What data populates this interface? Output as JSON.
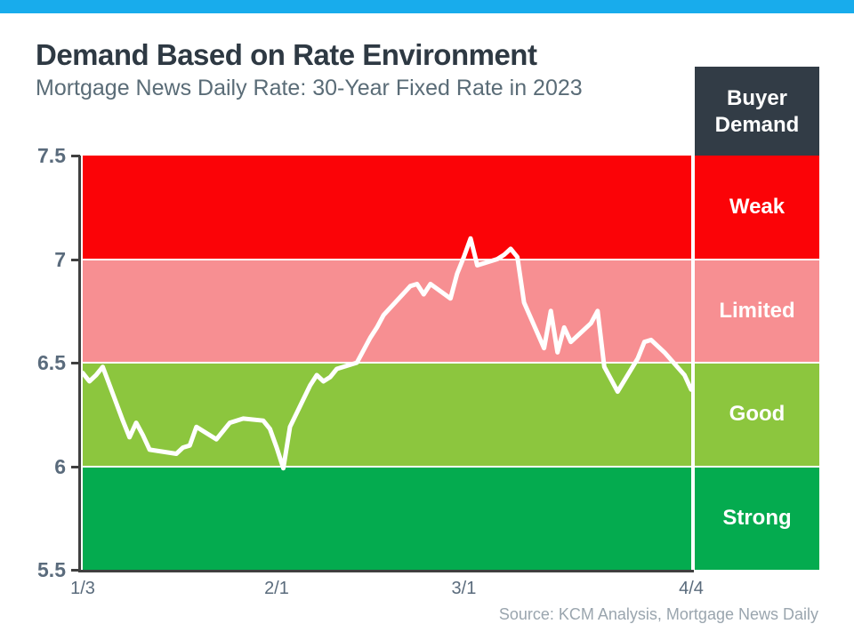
{
  "page": {
    "title": "Demand Based on Rate Environment",
    "subtitle": "Mortgage News Daily Rate: 30-Year Fixed Rate in 2023",
    "source": "Source: KCM Analysis, Mortgage News Daily",
    "accent_bar_color": "#18acec"
  },
  "legend": {
    "header": "Buyer Demand",
    "header_bg": "#323c46"
  },
  "chart_data": {
    "type": "line",
    "title": "Demand Based on Rate Environment",
    "subtitle": "Mortgage News Daily Rate: 30-Year Fixed Rate in 2023",
    "xlabel": "",
    "ylabel": "",
    "ylim": [
      5.5,
      7.5
    ],
    "yticks": [
      7.5,
      7.0,
      6.5,
      6.0,
      5.5
    ],
    "ytick_labels": [
      "7.5",
      "7",
      "6.5",
      "6",
      "5.5"
    ],
    "xtick_labels": [
      "1/3",
      "2/1",
      "3/1",
      "4/4"
    ],
    "x_start": "1/3",
    "x_end": "4/4",
    "grid": false,
    "line_color": "#ffffff",
    "legend_position": "right",
    "bands": [
      {
        "label": "Weak",
        "from": 7.0,
        "to": 7.5,
        "color": "#fb0307"
      },
      {
        "label": "Limited",
        "from": 6.5,
        "to": 7.0,
        "color": "#f78f92"
      },
      {
        "label": "Good",
        "from": 6.0,
        "to": 6.5,
        "color": "#8cc63e"
      },
      {
        "label": "Strong",
        "from": 5.5,
        "to": 6.0,
        "color": "#04ab4f"
      }
    ],
    "series": [
      {
        "name": "30-Year Fixed Rate",
        "points": [
          {
            "d": "1/3",
            "v": 6.45
          },
          {
            "d": "1/4",
            "v": 6.41
          },
          {
            "d": "1/5",
            "v": 6.44
          },
          {
            "d": "1/6",
            "v": 6.48
          },
          {
            "d": "1/9",
            "v": 6.22
          },
          {
            "d": "1/10",
            "v": 6.14
          },
          {
            "d": "1/11",
            "v": 6.21
          },
          {
            "d": "1/12",
            "v": 6.15
          },
          {
            "d": "1/13",
            "v": 6.08
          },
          {
            "d": "1/17",
            "v": 6.06
          },
          {
            "d": "1/18",
            "v": 6.09
          },
          {
            "d": "1/19",
            "v": 6.1
          },
          {
            "d": "1/20",
            "v": 6.19
          },
          {
            "d": "1/23",
            "v": 6.13
          },
          {
            "d": "1/24",
            "v": 6.17
          },
          {
            "d": "1/25",
            "v": 6.21
          },
          {
            "d": "1/26",
            "v": 6.22
          },
          {
            "d": "1/27",
            "v": 6.23
          },
          {
            "d": "1/30",
            "v": 6.22
          },
          {
            "d": "1/31",
            "v": 6.18
          },
          {
            "d": "2/1",
            "v": 6.09
          },
          {
            "d": "2/2",
            "v": 5.99
          },
          {
            "d": "2/3",
            "v": 6.19
          },
          {
            "d": "2/6",
            "v": 6.39
          },
          {
            "d": "2/7",
            "v": 6.44
          },
          {
            "d": "2/8",
            "v": 6.41
          },
          {
            "d": "2/9",
            "v": 6.43
          },
          {
            "d": "2/10",
            "v": 6.47
          },
          {
            "d": "2/13",
            "v": 6.5
          },
          {
            "d": "2/14",
            "v": 6.56
          },
          {
            "d": "2/15",
            "v": 6.62
          },
          {
            "d": "2/16",
            "v": 6.67
          },
          {
            "d": "2/17",
            "v": 6.73
          },
          {
            "d": "2/21",
            "v": 6.87
          },
          {
            "d": "2/22",
            "v": 6.88
          },
          {
            "d": "2/23",
            "v": 6.83
          },
          {
            "d": "2/24",
            "v": 6.88
          },
          {
            "d": "2/27",
            "v": 6.81
          },
          {
            "d": "2/28",
            "v": 6.93
          },
          {
            "d": "3/1",
            "v": 7.01
          },
          {
            "d": "3/2",
            "v": 7.1
          },
          {
            "d": "3/3",
            "v": 6.97
          },
          {
            "d": "3/6",
            "v": 7.0
          },
          {
            "d": "3/7",
            "v": 7.02
          },
          {
            "d": "3/8",
            "v": 7.05
          },
          {
            "d": "3/9",
            "v": 7.01
          },
          {
            "d": "3/10",
            "v": 6.79
          },
          {
            "d": "3/13",
            "v": 6.57
          },
          {
            "d": "3/14",
            "v": 6.75
          },
          {
            "d": "3/15",
            "v": 6.55
          },
          {
            "d": "3/16",
            "v": 6.67
          },
          {
            "d": "3/17",
            "v": 6.6
          },
          {
            "d": "3/20",
            "v": 6.69
          },
          {
            "d": "3/21",
            "v": 6.75
          },
          {
            "d": "3/22",
            "v": 6.48
          },
          {
            "d": "3/23",
            "v": 6.42
          },
          {
            "d": "3/24",
            "v": 6.36
          },
          {
            "d": "3/27",
            "v": 6.52
          },
          {
            "d": "3/28",
            "v": 6.6
          },
          {
            "d": "3/29",
            "v": 6.61
          },
          {
            "d": "3/30",
            "v": 6.58
          },
          {
            "d": "3/31",
            "v": 6.55
          },
          {
            "d": "4/3",
            "v": 6.44
          },
          {
            "d": "4/4",
            "v": 6.37
          }
        ]
      }
    ]
  }
}
